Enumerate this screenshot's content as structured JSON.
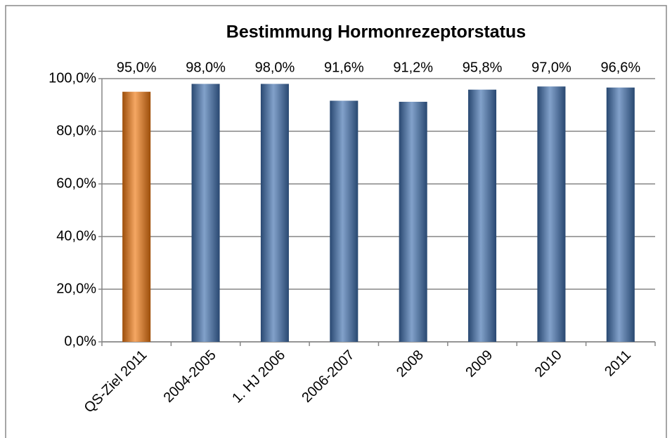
{
  "chart_data": {
    "type": "bar",
    "title": "Bestimmung Hormonrezeptorstatus",
    "categories": [
      "QS-Ziel 2011",
      "2004-2005",
      "1. HJ 2006",
      "2006-2007",
      "2008",
      "2009",
      "2010",
      "2011"
    ],
    "values": [
      95.0,
      98.0,
      98.0,
      91.6,
      91.2,
      95.8,
      97.0,
      96.6
    ],
    "value_labels": [
      "95,0%",
      "98,0%",
      "98,0%",
      "91,6%",
      "91,2%",
      "95,8%",
      "97,0%",
      "96,6%"
    ],
    "colors": [
      "#f07810",
      "#3f6fae",
      "#3f6fae",
      "#3f6fae",
      "#3f6fae",
      "#3f6fae",
      "#3f6fae",
      "#3f6fae"
    ],
    "ylim": [
      0,
      100
    ],
    "yticks": [
      {
        "value": 0,
        "label": "0,0%"
      },
      {
        "value": 20,
        "label": "20,0%"
      },
      {
        "value": 40,
        "label": "40,0%"
      },
      {
        "value": 60,
        "label": "60,0%"
      },
      {
        "value": 80,
        "label": "80,0%"
      },
      {
        "value": 100,
        "label": "100,0%"
      }
    ],
    "grid": true
  }
}
